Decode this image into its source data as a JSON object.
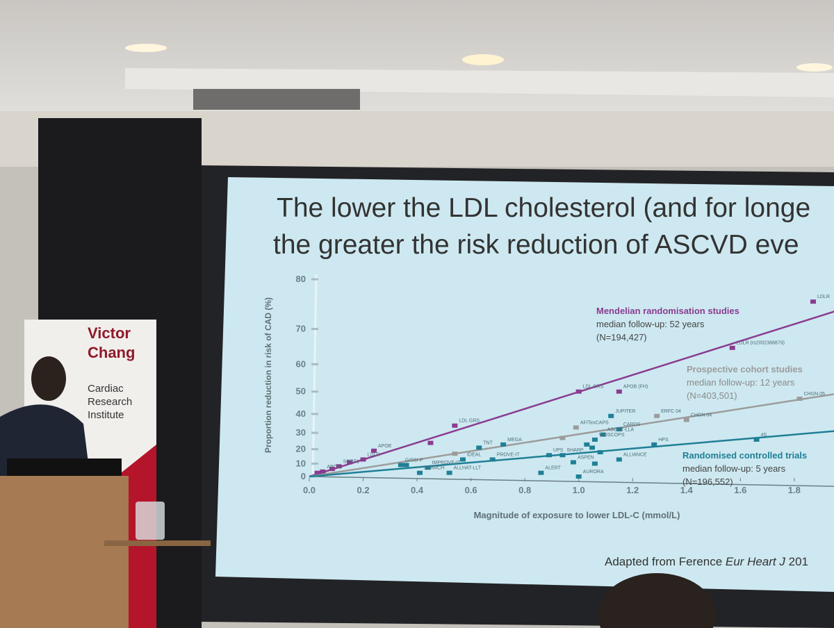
{
  "banner": {
    "lines": [
      "Victor",
      "Chang",
      "Cardiac",
      "Research",
      "Institute"
    ]
  },
  "slide": {
    "title_lines": [
      "The lower the LDL cholesterol (and for longe",
      "the greater the risk reduction of ASCVD eve"
    ],
    "citation": {
      "prefix": "Adapted from Ference",
      "journal": "Eur Heart J",
      "year": "201"
    }
  },
  "chart_data": {
    "type": "scatter",
    "x_label": "Magnitude of exposure to lower LDL-C (mmol/L)",
    "y_label": "Proportion reduction in risk of CAD (%)",
    "yscale": "log_relative_risk",
    "xlim": [
      0,
      1.95
    ],
    "ylim": [
      0,
      80
    ],
    "xticks": [
      {
        "value": 0,
        "label": "0.0"
      },
      {
        "value": 0.2,
        "label": "0.2"
      },
      {
        "value": 0.4,
        "label": "0.4"
      },
      {
        "value": 0.6,
        "label": "0.6"
      },
      {
        "value": 0.8,
        "label": "0.8"
      },
      {
        "value": 1.0,
        "label": "1.0"
      },
      {
        "value": 1.2,
        "label": "1.2"
      },
      {
        "value": 1.4,
        "label": "1.4"
      },
      {
        "value": 1.6,
        "label": "1.6"
      },
      {
        "value": 1.8,
        "label": "1.8"
      }
    ],
    "yticks": [
      0,
      10,
      20,
      30,
      40,
      50,
      60,
      70,
      80
    ],
    "series": [
      {
        "name": "Mendelian randomisation studies",
        "followup": "median follow-up: 52 years",
        "n": "(N=194,427)",
        "color": "#8b3b90",
        "fit_x": [
          0,
          1.95
        ],
        "fit_values": [
          0,
          74
        ],
        "labels": [
          "LDLR",
          "LDLR (rs2002388879)",
          "APOB (FH)",
          "LDL GRS",
          "LDL GRS",
          null,
          "APOE",
          "LDLR",
          null,
          "SORT1",
          null,
          "APO9",
          null
        ],
        "x": [
          1.87,
          1.57,
          1.15,
          1.0,
          0.54,
          0.45,
          0.24,
          0.2,
          0.15,
          0.11,
          0.085,
          0.05,
          0.03
        ],
        "values": [
          76,
          65,
          50,
          50,
          34,
          24,
          19,
          13,
          11,
          8,
          6,
          4,
          3
        ]
      },
      {
        "name": "Prospective cohort studies",
        "followup": "median follow-up: 12 years",
        "n": "(N=403,501)",
        "color": "#9c9c9c",
        "fit_x": [
          0,
          1.95
        ],
        "fit_values": [
          0,
          49
        ],
        "labels": [
          "CHGN 05",
          "CHGN 04",
          "ERFC 04",
          "AF/TexCAPS",
          null,
          null
        ],
        "x": [
          1.82,
          1.4,
          1.29,
          0.99,
          0.94,
          0.54
        ],
        "values": [
          47,
          37,
          39,
          33,
          27,
          17
        ]
      },
      {
        "name": "Randomised controlled trials",
        "followup": "median follow-up: 5 years",
        "n": "(N=196,552)",
        "color": "#1f7f96",
        "fit_x": [
          0,
          1.95
        ],
        "fit_values": [
          0,
          31
        ],
        "labels": [
          "4S",
          "HPS",
          "JUPITER",
          "CARDS",
          "ASCOT-LLA",
          "WOSCOPS",
          null,
          "ALLIANCE",
          null,
          null,
          null,
          "SHARP",
          "UPS",
          "ASPEN",
          "AURORA",
          "ALERT",
          "PROVE-IT",
          "IDEAL",
          "TNT",
          "MEGA",
          "GISSI-P",
          "IMPROVE-IT",
          "SEARCH",
          "ALLHAT-LLT",
          null
        ],
        "x": [
          1.66,
          1.28,
          1.12,
          1.15,
          1.09,
          1.06,
          1.03,
          1.15,
          1.08,
          1.06,
          1.05,
          0.94,
          0.89,
          0.98,
          1.0,
          0.86,
          0.68,
          0.57,
          0.63,
          0.72,
          0.34,
          0.44,
          0.41,
          0.52,
          0.36
        ],
        "values": [
          26,
          23,
          39,
          32,
          29,
          26,
          23,
          13,
          18,
          10,
          21,
          16,
          16,
          11,
          0,
          3,
          13,
          13,
          21,
          23,
          9,
          7,
          3,
          3,
          9
        ]
      }
    ]
  }
}
